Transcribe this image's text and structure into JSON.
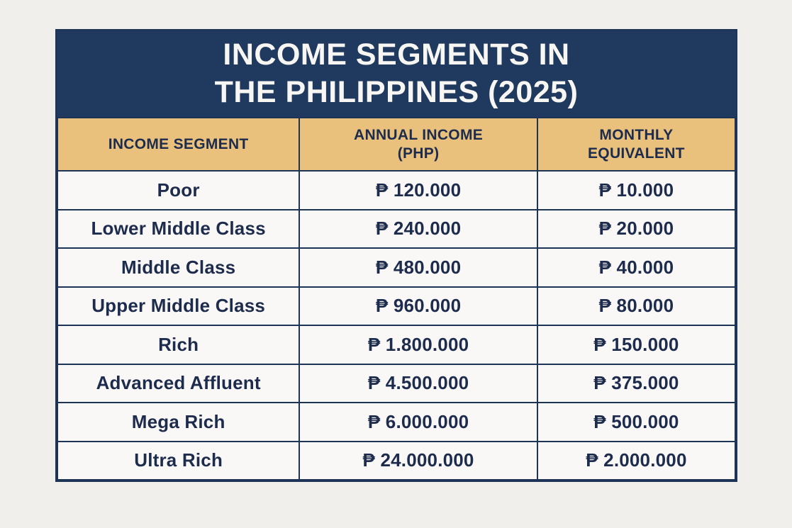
{
  "title": {
    "line1": "INCOME SEGMENTS IN",
    "line2": "THE PHILIPPINES (2025)"
  },
  "chart_data": {
    "type": "table",
    "title": "INCOME SEGMENTS IN THE PHILIPPINES (2025)",
    "columns": [
      "INCOME SEGMENT",
      "ANNUAL INCOME (PHP)",
      "MONTHLY EQUIVALENT"
    ],
    "rows": [
      [
        "Poor",
        "₱ 120.000",
        "₱ 10.000"
      ],
      [
        "Lower Middle Class",
        "₱ 240.000",
        "₱ 20.000"
      ],
      [
        "Middle Class",
        "₱ 480.000",
        "₱ 40.000"
      ],
      [
        "Upper Middle Class",
        "₱ 960.000",
        "₱ 80.000"
      ],
      [
        "Rich",
        "₱ 1.800.000",
        "₱ 150.000"
      ],
      [
        "Advanced Affluent",
        "₱ 4.500.000",
        "₱ 375.000"
      ],
      [
        "Mega Rich",
        "₱ 6.000.000",
        "₱ 500.000"
      ],
      [
        "Ultra Rich",
        "₱ 24.000.000",
        "₱ 2.000.000"
      ]
    ],
    "currency_symbol": "₱",
    "legend_position": "none",
    "grid": "full-table-borders"
  },
  "colors": {
    "navy": "#1f3a5e",
    "gold": "#e9c17d",
    "page_background": "#f1efec",
    "row_background": "#faf8f6",
    "row_text": "#1d2c4d",
    "title_text": "#f7f6f3",
    "border": "#1e3456"
  }
}
